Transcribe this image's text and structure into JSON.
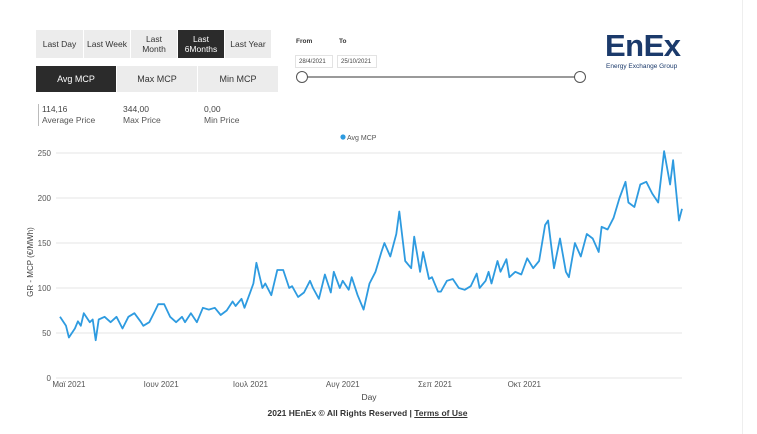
{
  "period_buttons": [
    "Last Day",
    "Last Week",
    "Last\nMonth",
    "Last\n6Months",
    "Last Year"
  ],
  "active_period": "Last\n6Months",
  "metric_tabs": [
    "Avg MCP",
    "Max MCP",
    "Min MCP"
  ],
  "active_metric": "Avg MCP",
  "kpis": [
    {
      "value": "114,16",
      "label": "Average Price"
    },
    {
      "value": "344,00",
      "label": "Max Price"
    },
    {
      "value": "0,00",
      "label": "Min Price"
    }
  ],
  "date_slicer": {
    "from_label": "From",
    "to_label": "To",
    "from_value": "28/4/2021",
    "to_value": "25/10/2021"
  },
  "logo": {
    "word": "EnEx",
    "subtitle": "Energy Exchange Group"
  },
  "footer": {
    "text": "2021 HEnEx © All Rights Reserved | ",
    "link": "Terms of Use"
  },
  "colors": {
    "line": "#2e9be0",
    "active_button": "#2b2b2b",
    "logo": "#1b3a6b"
  },
  "chart_data": {
    "type": "line",
    "title": "",
    "xlabel": "Day",
    "ylabel": "GR - MCP (€/MWh)",
    "ylim": [
      0,
      250
    ],
    "yticks": [
      0,
      50,
      100,
      150,
      200,
      250
    ],
    "xticks": [
      {
        "date": "2021-05-01",
        "label": "Μαϊ 2021"
      },
      {
        "date": "2021-06-01",
        "label": "Ιουν 2021"
      },
      {
        "date": "2021-07-01",
        "label": "Ιουλ 2021"
      },
      {
        "date": "2021-08-01",
        "label": "Αυγ 2021"
      },
      {
        "date": "2021-09-01",
        "label": "Σεπ 2021"
      },
      {
        "date": "2021-10-01",
        "label": "Οκτ 2021"
      }
    ],
    "legend": {
      "position": "top-center"
    },
    "series": [
      {
        "name": "Avg MCP",
        "points": [
          [
            "2021-04-28",
            68
          ],
          [
            "2021-04-30",
            58
          ],
          [
            "2021-05-01",
            45
          ],
          [
            "2021-05-03",
            55
          ],
          [
            "2021-05-04",
            63
          ],
          [
            "2021-05-05",
            58
          ],
          [
            "2021-05-06",
            72
          ],
          [
            "2021-05-08",
            62
          ],
          [
            "2021-05-09",
            65
          ],
          [
            "2021-05-10",
            42
          ],
          [
            "2021-05-11",
            65
          ],
          [
            "2021-05-13",
            68
          ],
          [
            "2021-05-15",
            62
          ],
          [
            "2021-05-17",
            68
          ],
          [
            "2021-05-19",
            55
          ],
          [
            "2021-05-21",
            68
          ],
          [
            "2021-05-23",
            72
          ],
          [
            "2021-05-25",
            63
          ],
          [
            "2021-05-26",
            58
          ],
          [
            "2021-05-28",
            62
          ],
          [
            "2021-05-30",
            75
          ],
          [
            "2021-05-31",
            82
          ],
          [
            "2021-06-02",
            82
          ],
          [
            "2021-06-04",
            68
          ],
          [
            "2021-06-06",
            62
          ],
          [
            "2021-06-08",
            68
          ],
          [
            "2021-06-09",
            62
          ],
          [
            "2021-06-11",
            72
          ],
          [
            "2021-06-13",
            62
          ],
          [
            "2021-06-15",
            78
          ],
          [
            "2021-06-17",
            76
          ],
          [
            "2021-06-19",
            78
          ],
          [
            "2021-06-21",
            70
          ],
          [
            "2021-06-23",
            75
          ],
          [
            "2021-06-25",
            85
          ],
          [
            "2021-06-26",
            80
          ],
          [
            "2021-06-28",
            88
          ],
          [
            "2021-06-29",
            78
          ],
          [
            "2021-07-01",
            96
          ],
          [
            "2021-07-02",
            105
          ],
          [
            "2021-07-03",
            128
          ],
          [
            "2021-07-05",
            100
          ],
          [
            "2021-07-06",
            105
          ],
          [
            "2021-07-08",
            92
          ],
          [
            "2021-07-10",
            120
          ],
          [
            "2021-07-12",
            120
          ],
          [
            "2021-07-14",
            100
          ],
          [
            "2021-07-15",
            102
          ],
          [
            "2021-07-17",
            90
          ],
          [
            "2021-07-19",
            95
          ],
          [
            "2021-07-21",
            108
          ],
          [
            "2021-07-22",
            100
          ],
          [
            "2021-07-24",
            88
          ],
          [
            "2021-07-26",
            115
          ],
          [
            "2021-07-28",
            95
          ],
          [
            "2021-07-29",
            118
          ],
          [
            "2021-07-31",
            100
          ],
          [
            "2021-08-01",
            108
          ],
          [
            "2021-08-03",
            98
          ],
          [
            "2021-08-04",
            112
          ],
          [
            "2021-08-06",
            92
          ],
          [
            "2021-08-08",
            76
          ],
          [
            "2021-08-10",
            105
          ],
          [
            "2021-08-12",
            118
          ],
          [
            "2021-08-14",
            140
          ],
          [
            "2021-08-15",
            150
          ],
          [
            "2021-08-17",
            135
          ],
          [
            "2021-08-19",
            160
          ],
          [
            "2021-08-20",
            185
          ],
          [
            "2021-08-22",
            130
          ],
          [
            "2021-08-24",
            122
          ],
          [
            "2021-08-25",
            157
          ],
          [
            "2021-08-27",
            118
          ],
          [
            "2021-08-28",
            140
          ],
          [
            "2021-08-30",
            110
          ],
          [
            "2021-08-31",
            112
          ],
          [
            "2021-09-02",
            96
          ],
          [
            "2021-09-03",
            96
          ],
          [
            "2021-09-05",
            108
          ],
          [
            "2021-09-07",
            110
          ],
          [
            "2021-09-09",
            100
          ],
          [
            "2021-09-11",
            98
          ],
          [
            "2021-09-13",
            102
          ],
          [
            "2021-09-15",
            116
          ],
          [
            "2021-09-16",
            100
          ],
          [
            "2021-09-18",
            108
          ],
          [
            "2021-09-19",
            118
          ],
          [
            "2021-09-20",
            105
          ],
          [
            "2021-09-22",
            130
          ],
          [
            "2021-09-23",
            118
          ],
          [
            "2021-09-25",
            132
          ],
          [
            "2021-09-26",
            112
          ],
          [
            "2021-09-28",
            118
          ],
          [
            "2021-09-30",
            115
          ],
          [
            "2021-10-02",
            133
          ],
          [
            "2021-10-04",
            122
          ],
          [
            "2021-10-06",
            130
          ],
          [
            "2021-10-08",
            170
          ],
          [
            "2021-10-09",
            175
          ],
          [
            "2021-10-11",
            122
          ],
          [
            "2021-10-13",
            155
          ],
          [
            "2021-10-15",
            118
          ],
          [
            "2021-10-16",
            112
          ],
          [
            "2021-10-18",
            150
          ],
          [
            "2021-10-20",
            135
          ],
          [
            "2021-10-22",
            160
          ],
          [
            "2021-10-24",
            155
          ],
          [
            "2021-10-26",
            140
          ],
          [
            "2021-10-27",
            168
          ],
          [
            "2021-10-29",
            165
          ],
          [
            "2021-10-31",
            178
          ],
          [
            "2021-11-02",
            200
          ],
          [
            "2021-11-04",
            218
          ],
          [
            "2021-11-05",
            195
          ],
          [
            "2021-11-07",
            190
          ],
          [
            "2021-11-09",
            215
          ],
          [
            "2021-11-11",
            218
          ],
          [
            "2021-11-13",
            205
          ],
          [
            "2021-11-15",
            195
          ],
          [
            "2021-11-17",
            252
          ],
          [
            "2021-11-19",
            215
          ],
          [
            "2021-11-20",
            242
          ],
          [
            "2021-11-22",
            175
          ],
          [
            "2021-11-23",
            188
          ]
        ]
      }
    ]
  }
}
